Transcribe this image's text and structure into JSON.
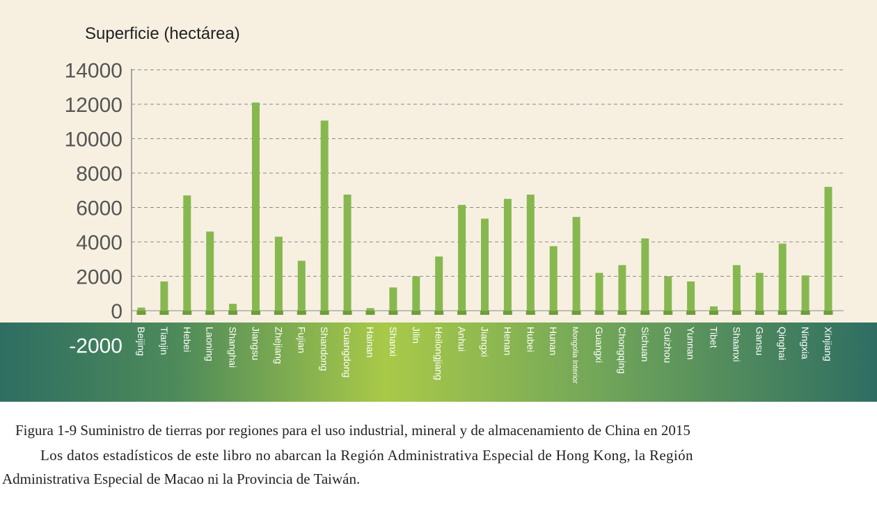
{
  "chart_data": {
    "type": "bar",
    "ylabel": "Superficie (hectárea)",
    "ylim": [
      -2000,
      14000
    ],
    "yticks": [
      14000,
      12000,
      10000,
      8000,
      6000,
      4000,
      2000,
      0,
      -2000
    ],
    "grid": true,
    "categories": [
      "Beijing",
      "Tianjin",
      "Hebei",
      "Laoning",
      "Shanghai",
      "Jiangsu",
      "Zhejiang",
      "Fujian",
      "Shandong",
      "Guangdong",
      "Hainan",
      "Shanxi",
      "Jilin",
      "Heilongjiang",
      "Anhui",
      "Jiangxi",
      "Henan",
      "Hubei",
      "Hunan",
      "Mongolia Interior",
      "Guangxi",
      "Chongqing",
      "Sichuan",
      "Guizhou",
      "Yunnan",
      "Tibet",
      "Shaanxi",
      "Gansu",
      "Qinghai",
      "Ningxia",
      "Xinjiang"
    ],
    "values": [
      180,
      1700,
      6700,
      4600,
      400,
      12100,
      4300,
      2900,
      11050,
      6750,
      150,
      1350,
      2000,
      3150,
      6150,
      5350,
      6500,
      6750,
      3750,
      5450,
      2200,
      2650,
      4200,
      2000,
      1700,
      250,
      2650,
      2200,
      3900,
      2050,
      7200
    ],
    "colors": {
      "bar": "#86b84f",
      "bar_stub": "#6e9d3b",
      "grid": "#8a8a8a",
      "axis_text": "#555555",
      "band_dark": "#2e6e62",
      "band_light": "#a9c948"
    }
  },
  "caption": {
    "title": "Figura 1-9 Suministro de tierras por regiones para el uso industrial, mineral y de almacenamiento de China en 2015",
    "note_line1": "Los datos estadísticos de este libro no abarcan la Región Administrativa Especial de Hong Kong, la Región",
    "note_line2": "Administrativa Especial de Macao ni la Provincia de Taiwán."
  }
}
